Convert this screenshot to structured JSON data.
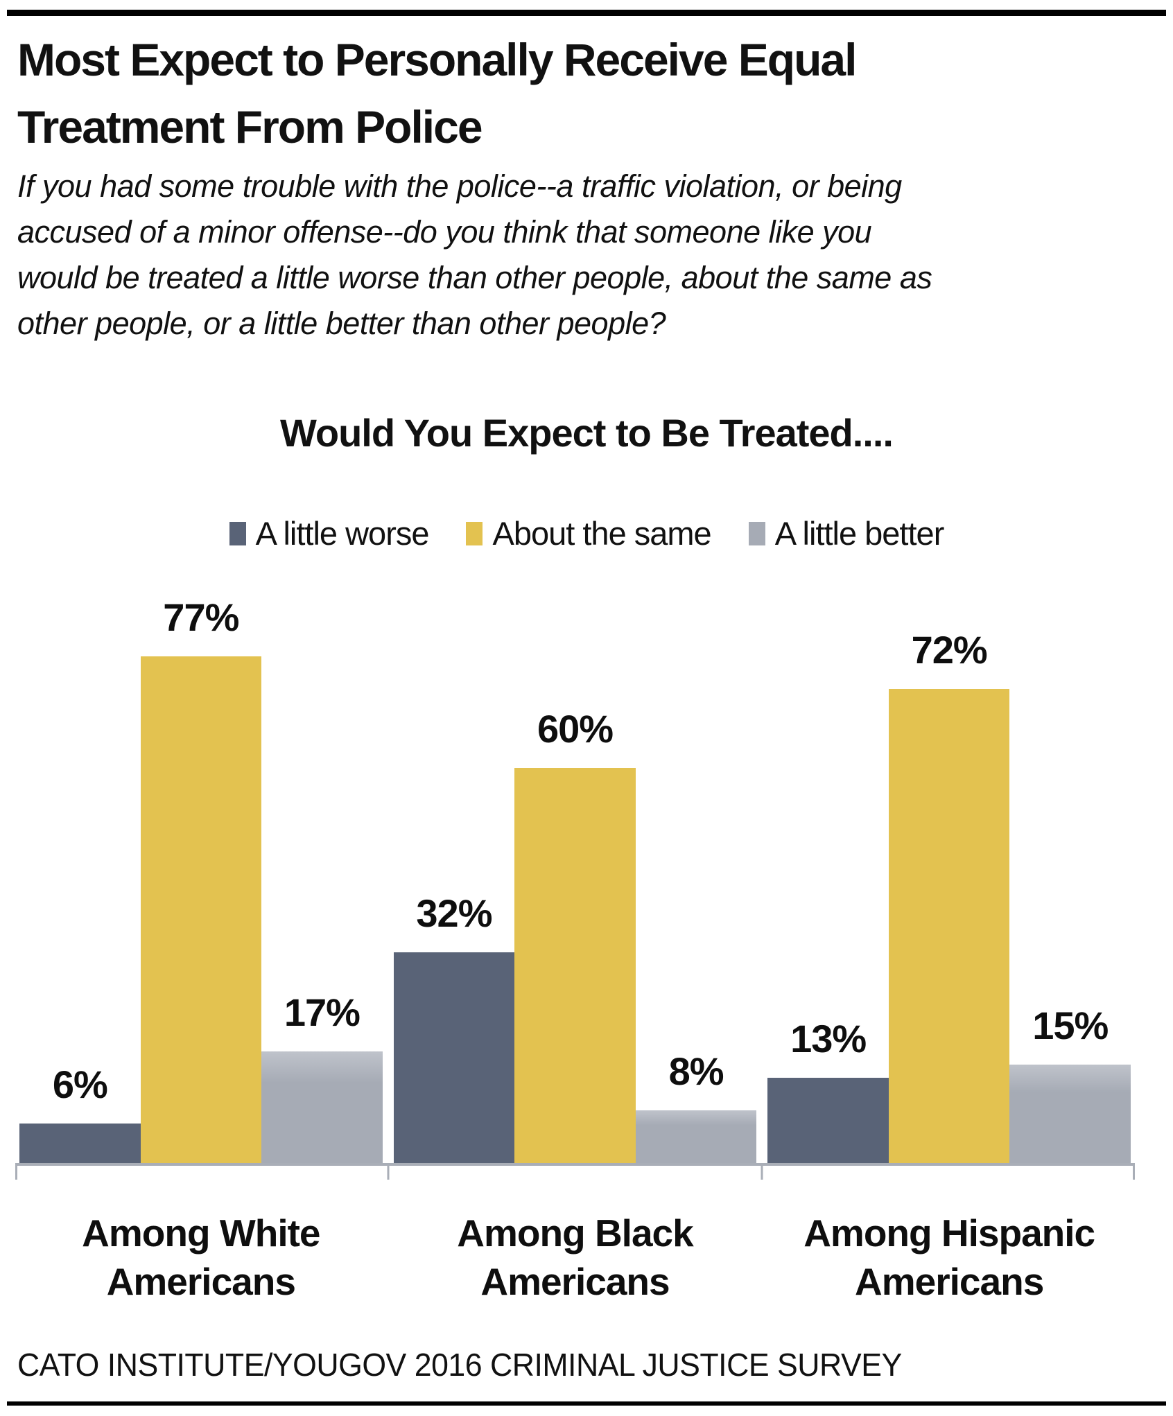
{
  "header": {
    "title": "Most Expect to Personally Receive Equal Treatment From Police",
    "subtitle": "If you had some trouble with the police--a traffic violation, or being accused of a minor offense--do you think that someone like you would be treated a little worse than other people, about the same as other people, or a little better than other people?",
    "subtitle_lines": [
      "If you had some trouble with the police--a traffic violation, or being",
      "accused of a minor offense--do you think that someone like you",
      "would be treated a little worse than other people, about the same as",
      "other people, or a little better than other people?"
    ]
  },
  "chart_data": {
    "type": "bar",
    "title": "Would You Expect to Be Treated....",
    "categories": [
      "Among White Americans",
      "Among Black Americans",
      "Among Hispanic Americans"
    ],
    "series": [
      {
        "name": "A little worse",
        "color": "#596377",
        "values": [
          6,
          32,
          13
        ]
      },
      {
        "name": "About the same",
        "color": "#e3c250",
        "values": [
          77,
          60,
          72
        ]
      },
      {
        "name": "A little better",
        "color": "#a6abb5",
        "values": [
          17,
          8,
          15
        ]
      }
    ],
    "value_suffix": "%",
    "ylim": [
      0,
      100
    ],
    "grid": false,
    "legend_position": "top",
    "bar_value_labels": true,
    "axis_color": "#a9aeb7"
  },
  "footer": {
    "source": "CATO INSTITUTE/YOUGOV 2016 CRIMINAL JUSTICE SURVEY"
  }
}
